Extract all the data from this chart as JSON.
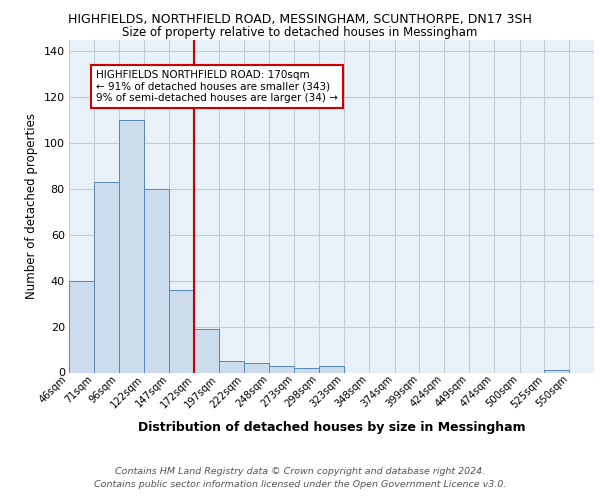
{
  "title1": "HIGHFIELDS, NORTHFIELD ROAD, MESSINGHAM, SCUNTHORPE, DN17 3SH",
  "title2": "Size of property relative to detached houses in Messingham",
  "xlabel": "Distribution of detached houses by size in Messingham",
  "ylabel": "Number of detached properties",
  "bin_labels": [
    "46sqm",
    "71sqm",
    "96sqm",
    "122sqm",
    "147sqm",
    "172sqm",
    "197sqm",
    "222sqm",
    "248sqm",
    "273sqm",
    "298sqm",
    "323sqm",
    "348sqm",
    "374sqm",
    "399sqm",
    "424sqm",
    "449sqm",
    "474sqm",
    "500sqm",
    "525sqm",
    "550sqm"
  ],
  "bin_edges": [
    46,
    71,
    96,
    122,
    147,
    172,
    197,
    222,
    248,
    273,
    298,
    323,
    348,
    374,
    399,
    424,
    449,
    474,
    500,
    525,
    550,
    575
  ],
  "heights": [
    40,
    83,
    110,
    80,
    36,
    19,
    5,
    4,
    3,
    2,
    3,
    0,
    0,
    0,
    0,
    0,
    0,
    0,
    0,
    1,
    0
  ],
  "bar_color": "#ccdcec",
  "bar_edge_color": "#5588bb",
  "vline_x": 172,
  "vline_color": "#cc0000",
  "annotation_text": "HIGHFIELDS NORTHFIELD ROAD: 170sqm\n← 91% of detached houses are smaller (343)\n9% of semi-detached houses are larger (34) →",
  "annotation_box_facecolor": "white",
  "annotation_border_color": "#cc0000",
  "ylim": [
    0,
    145
  ],
  "yticks": [
    0,
    20,
    40,
    60,
    80,
    100,
    120,
    140
  ],
  "footer1": "Contains HM Land Registry data © Crown copyright and database right 2024.",
  "footer2": "Contains public sector information licensed under the Open Government Licence v3.0.",
  "fig_bg_color": "#ffffff",
  "plot_bg_color": "#e8f0f8",
  "grid_color": "#c0ccd8"
}
